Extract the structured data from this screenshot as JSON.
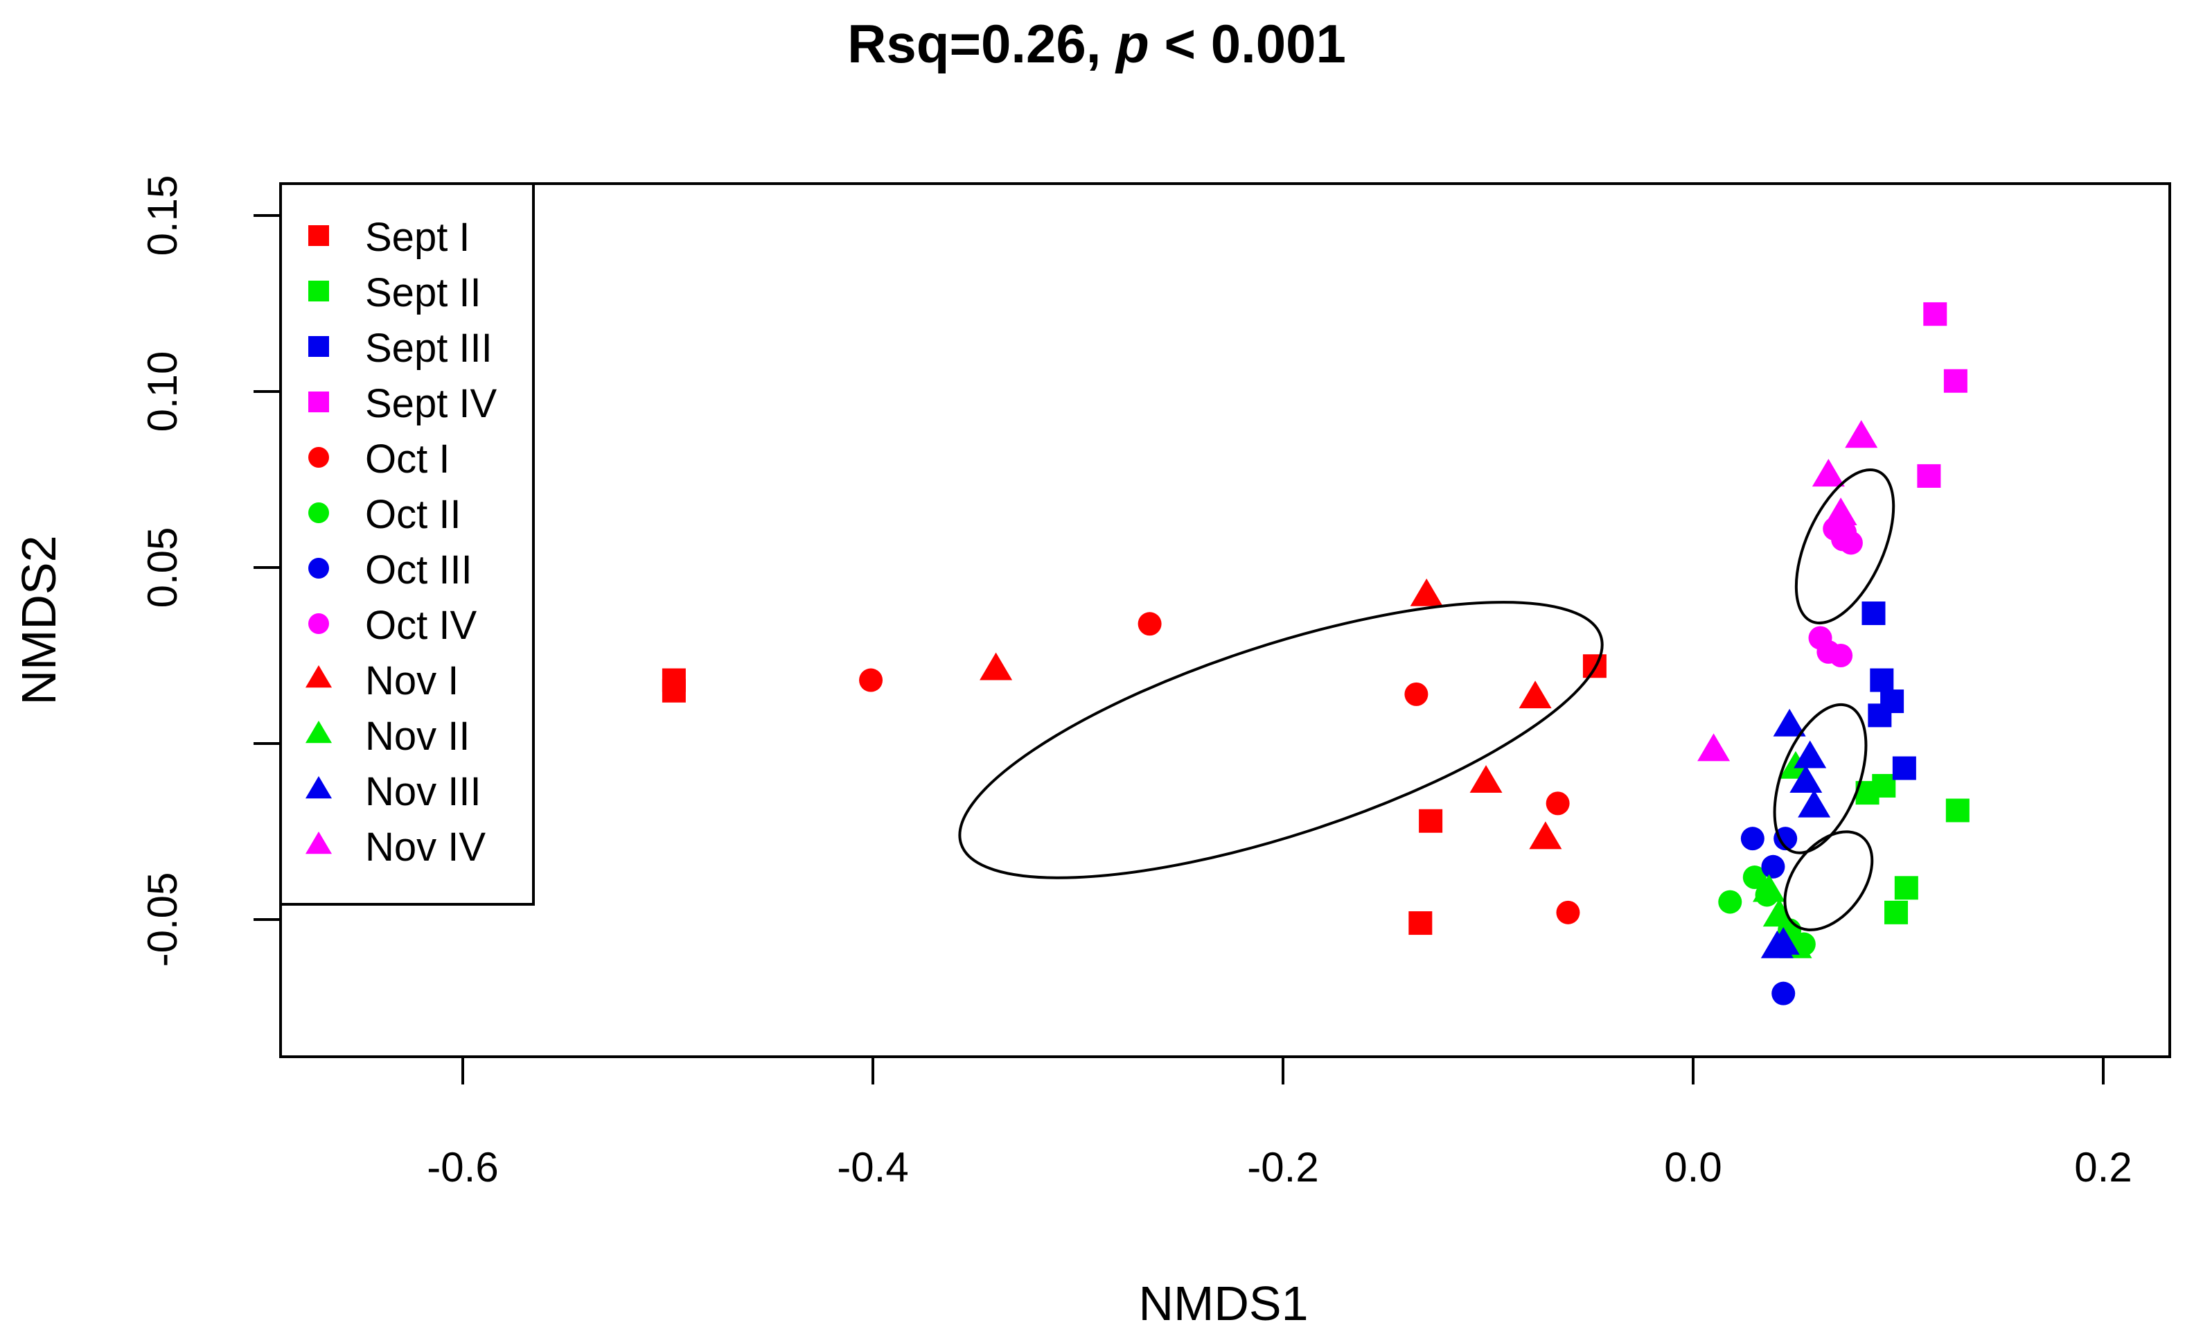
{
  "chart_data": {
    "type": "scatter",
    "title": "Rsq=0.26, p < 0.001",
    "title_parts": {
      "prefix": "Rsq=0.26, ",
      "italic": "p",
      "suffix": " < 0.001"
    },
    "xlabel": "NMDS1",
    "ylabel": "NMDS2",
    "xlim": [
      -0.68,
      0.235
    ],
    "ylim": [
      -0.088,
      0.16
    ],
    "xticks": [
      -0.6,
      -0.4,
      -0.2,
      0.0,
      0.2
    ],
    "xtick_labels": [
      "-0.6",
      "-0.4",
      "-0.2",
      "0.0",
      "0.2"
    ],
    "yticks": [
      -0.05,
      0.0,
      0.05,
      0.1,
      0.15
    ],
    "ytick_labels": [
      "-0.05",
      "",
      "0.05",
      "0.10",
      "0.15"
    ],
    "legend_position": "top-left",
    "series": [
      {
        "name": "Sept I",
        "color": "#ff0000",
        "marker": "square",
        "x": [
          -0.497,
          -0.497,
          -0.133,
          -0.128,
          -0.048
        ],
        "y": [
          0.018,
          0.015,
          -0.051,
          -0.022,
          0.022
        ]
      },
      {
        "name": "Sept II",
        "color": "#00ee00",
        "marker": "square",
        "x": [
          0.085,
          0.093,
          0.104,
          0.099,
          0.129
        ],
        "y": [
          -0.014,
          -0.012,
          -0.041,
          -0.048,
          -0.019
        ]
      },
      {
        "name": "Sept III",
        "color": "#0000ee",
        "marker": "square",
        "x": [
          0.088,
          0.092,
          0.097,
          0.091,
          0.103
        ],
        "y": [
          0.037,
          0.018,
          0.012,
          0.008,
          -0.007
        ]
      },
      {
        "name": "Sept IV",
        "color": "#ff00ff",
        "marker": "square",
        "x": [
          0.118,
          0.128,
          0.115
        ],
        "y": [
          0.122,
          0.103,
          0.076
        ]
      },
      {
        "name": "Oct I",
        "color": "#ff0000",
        "marker": "circle",
        "x": [
          -0.401,
          -0.265,
          -0.135,
          -0.066,
          -0.061
        ],
        "y": [
          0.018,
          0.034,
          0.014,
          -0.017,
          -0.048
        ]
      },
      {
        "name": "Oct II",
        "color": "#00ee00",
        "marker": "circle",
        "x": [
          0.018,
          0.03,
          0.036,
          0.047,
          0.054
        ],
        "y": [
          -0.045,
          -0.038,
          -0.043,
          -0.053,
          -0.057
        ]
      },
      {
        "name": "Oct III",
        "color": "#0000ee",
        "marker": "circle",
        "x": [
          0.029,
          0.039,
          0.045,
          0.044
        ],
        "y": [
          -0.027,
          -0.035,
          -0.027,
          -0.071
        ]
      },
      {
        "name": "Oct IV",
        "color": "#ff00ff",
        "marker": "circle",
        "x": [
          0.062,
          0.066,
          0.072,
          0.077,
          0.074,
          0.069,
          0.073
        ],
        "y": [
          0.03,
          0.026,
          0.025,
          0.057,
          0.06,
          0.061,
          0.058
        ]
      },
      {
        "name": "Nov I",
        "color": "#ff0000",
        "marker": "triangle",
        "x": [
          -0.34,
          -0.13,
          -0.077,
          -0.101,
          -0.072
        ],
        "y": [
          0.021,
          0.042,
          0.013,
          -0.011,
          -0.027
        ]
      },
      {
        "name": "Nov II",
        "color": "#00ee00",
        "marker": "triangle",
        "x": [
          0.05,
          0.037,
          0.042,
          0.047,
          0.05
        ],
        "y": [
          -0.007,
          -0.042,
          -0.049,
          -0.055,
          -0.058
        ]
      },
      {
        "name": "Nov III",
        "color": "#0000ee",
        "marker": "triangle",
        "x": [
          0.047,
          0.057,
          0.055,
          0.059,
          0.041,
          0.044
        ],
        "y": [
          0.005,
          -0.004,
          -0.011,
          -0.018,
          -0.058,
          -0.057
        ]
      },
      {
        "name": "Nov IV",
        "color": "#ff00ff",
        "marker": "triangle",
        "x": [
          0.01,
          0.066,
          0.082,
          0.072
        ],
        "y": [
          -0.002,
          0.076,
          0.087,
          0.065
        ]
      }
    ],
    "ellipses": [
      {
        "name": "ellipse-1",
        "cx": -0.201,
        "cy": 0.001,
        "rx": 0.164,
        "ry": 0.027,
        "angle": -18
      },
      {
        "name": "ellipse-2",
        "cx": 0.074,
        "cy": 0.056,
        "rx": 0.04,
        "ry": 0.011,
        "angle": -66
      },
      {
        "name": "ellipse-3",
        "cx": 0.062,
        "cy": -0.01,
        "rx": 0.038,
        "ry": 0.011,
        "angle": -69
      },
      {
        "name": "ellipse-4",
        "cx": 0.066,
        "cy": -0.039,
        "rx": 0.027,
        "ry": 0.01,
        "angle": -53
      }
    ]
  }
}
